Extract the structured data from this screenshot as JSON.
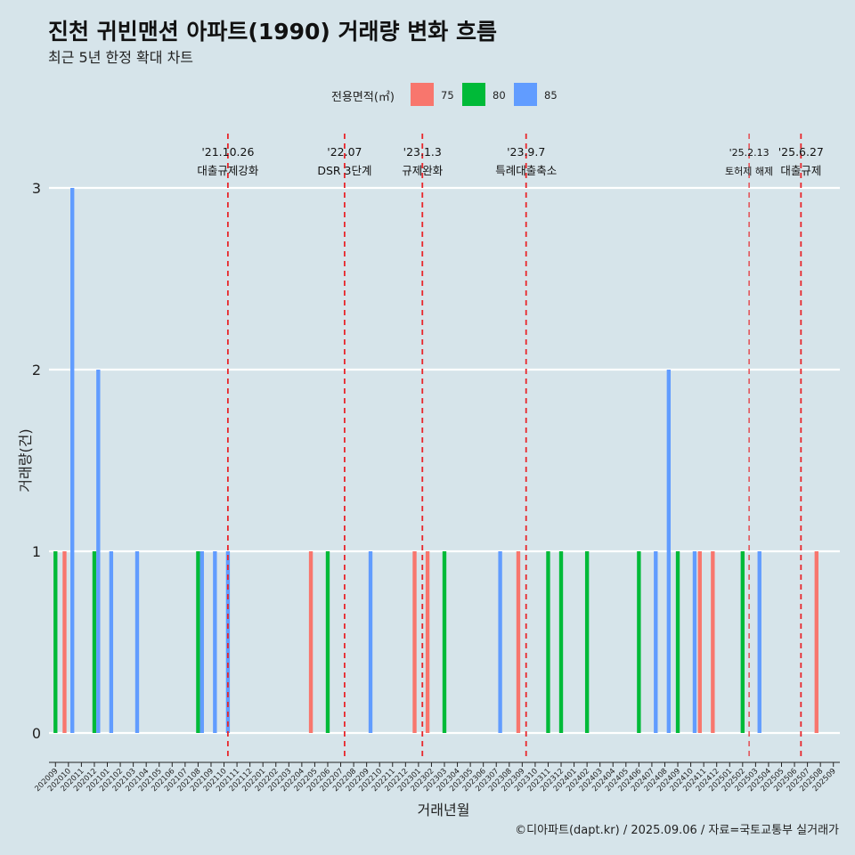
{
  "chart_data": {
    "type": "bar",
    "title": "진천 귀빈맨션 아파트(1990) 거래량 변화 흐름",
    "subtitle": "최근 5년 한정 확대 차트",
    "xlabel": "거래년월",
    "ylabel": "거래량(건)",
    "caption": "©디아파트(dapt.kr) / 2025.09.06 / 자료=국토교통부 실거래가",
    "legend_title": "전용면적(㎡)",
    "legend_position": "top",
    "ylim": [
      0,
      3
    ],
    "y_ticks": [
      0,
      1,
      2,
      3
    ],
    "categories": [
      "202009",
      "202010",
      "202011",
      "202012",
      "202101",
      "202102",
      "202103",
      "202104",
      "202105",
      "202106",
      "202107",
      "202108",
      "202109",
      "202110",
      "202111",
      "202112",
      "202201",
      "202202",
      "202203",
      "202204",
      "202205",
      "202206",
      "202207",
      "202208",
      "202209",
      "202210",
      "202211",
      "202212",
      "202301",
      "202302",
      "202303",
      "202304",
      "202305",
      "202306",
      "202307",
      "202308",
      "202309",
      "202310",
      "202311",
      "202312",
      "202401",
      "202402",
      "202403",
      "202404",
      "202405",
      "202406",
      "202407",
      "202408",
      "202409",
      "202410",
      "202411",
      "202412",
      "202501",
      "202502",
      "202503",
      "202504",
      "202505",
      "202506",
      "202507",
      "202508",
      "202509"
    ],
    "series": [
      {
        "name": "75",
        "color": "#f8766d",
        "values": [
          0,
          1,
          0,
          0,
          0,
          0,
          0,
          0,
          0,
          0,
          0,
          0,
          0,
          0,
          0,
          0,
          0,
          0,
          0,
          0,
          1,
          0,
          0,
          0,
          0,
          0,
          0,
          0,
          1,
          1,
          0,
          0,
          0,
          0,
          0,
          0,
          1,
          0,
          0,
          0,
          0,
          0,
          0,
          0,
          0,
          0,
          0,
          0,
          0,
          0,
          1,
          1,
          0,
          0,
          0,
          0,
          0,
          0,
          0,
          1,
          0
        ]
      },
      {
        "name": "80",
        "color": "#00ba38",
        "values": [
          1,
          0,
          0,
          1,
          0,
          0,
          0,
          0,
          0,
          0,
          0,
          1,
          0,
          0,
          0,
          0,
          0,
          0,
          0,
          0,
          0,
          1,
          0,
          0,
          0,
          0,
          0,
          0,
          0,
          0,
          1,
          0,
          0,
          0,
          0,
          0,
          0,
          0,
          1,
          1,
          0,
          1,
          0,
          0,
          0,
          1,
          0,
          0,
          1,
          0,
          0,
          0,
          0,
          1,
          0,
          0,
          0,
          0,
          0,
          0,
          0
        ]
      },
      {
        "name": "85",
        "color": "#619cff",
        "values": [
          0,
          3,
          0,
          2,
          1,
          0,
          1,
          0,
          0,
          0,
          0,
          1,
          1,
          1,
          0,
          0,
          0,
          0,
          0,
          0,
          0,
          0,
          0,
          0,
          1,
          0,
          0,
          0,
          0,
          0,
          0,
          0,
          0,
          0,
          1,
          0,
          0,
          0,
          0,
          0,
          0,
          0,
          0,
          0,
          0,
          0,
          1,
          2,
          0,
          1,
          0,
          0,
          0,
          0,
          1,
          0,
          0,
          0,
          0,
          0,
          0
        ]
      }
    ],
    "events": [
      {
        "date": "'21.10.26",
        "label": "대출규제강화",
        "x": 13.3,
        "small": false
      },
      {
        "date": "'22.07",
        "label": "DSR 3단계",
        "x": 22.3,
        "small": false
      },
      {
        "date": "'23.1.3",
        "label": "규제완화",
        "x": 28.3,
        "small": false
      },
      {
        "date": "'23.9.7",
        "label": "특례대출축소",
        "x": 36.3,
        "small": false
      },
      {
        "date": "'25.2.13",
        "label": "토허제 해제",
        "x": 53.5,
        "small": true
      },
      {
        "date": "'25.6.27",
        "label": "대출규제",
        "x": 57.5,
        "small": false
      }
    ]
  }
}
